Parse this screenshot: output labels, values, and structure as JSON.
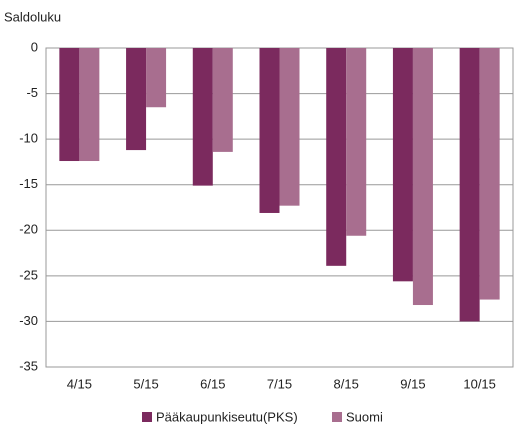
{
  "chart_data": {
    "type": "bar",
    "y_label": "Saldoluku",
    "categories": [
      "4/15",
      "5/15",
      "6/15",
      "7/15",
      "8/15",
      "9/15",
      "10/15"
    ],
    "series": [
      {
        "name": "Pääkaupunkiseutu(PKS)",
        "color": "#7b2a5e",
        "values": [
          -12.4,
          -11.2,
          -15.1,
          -18.1,
          -23.9,
          -25.6,
          -30
        ]
      },
      {
        "name": "Suomi",
        "color": "#a86e8f",
        "values": [
          -12.4,
          -6.5,
          -11.4,
          -17.3,
          -20.6,
          -28.2,
          -27.6
        ]
      }
    ],
    "ylim": [
      -35,
      0
    ],
    "yticks": [
      0,
      -5,
      -10,
      -15,
      -20,
      -25,
      -30,
      -35
    ],
    "grid": true,
    "legend": "bottom"
  }
}
